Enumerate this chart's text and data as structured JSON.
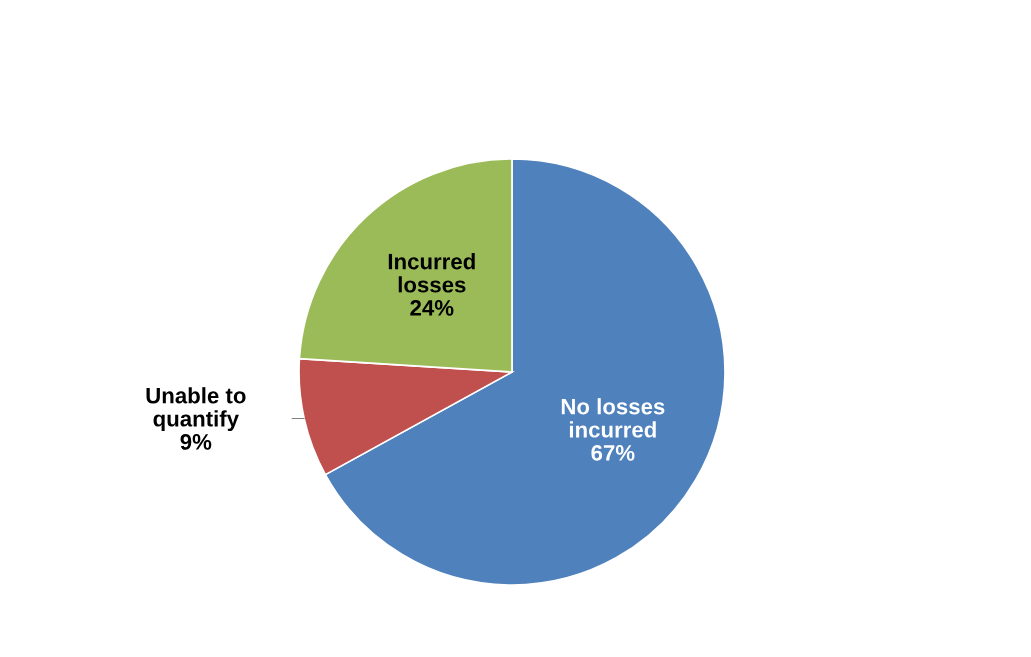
{
  "chart_data": {
    "type": "pie",
    "categories": [
      "No losses\nincurred",
      "Unable to\nquantify",
      "Incurred\nlosses"
    ],
    "values": [
      67,
      9,
      24
    ],
    "colors": [
      "#4f81bd",
      "#c0504d",
      "#9bbb59"
    ],
    "value_labels": [
      "67%",
      "9%",
      "24%"
    ]
  }
}
